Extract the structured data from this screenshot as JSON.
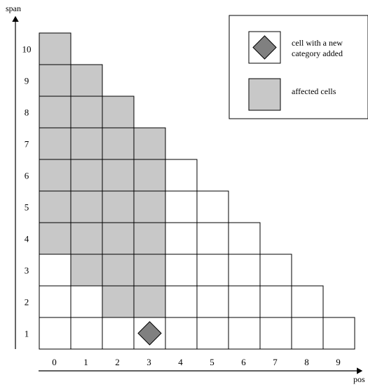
{
  "figure": {
    "axes": {
      "x_title": "pos",
      "y_title": "span",
      "x_ticks": [
        "0",
        "1",
        "2",
        "3",
        "4",
        "5",
        "6",
        "7",
        "8",
        "9"
      ],
      "y_ticks": [
        "1",
        "2",
        "3",
        "4",
        "5",
        "6",
        "7",
        "8",
        "9",
        "10"
      ]
    },
    "grid": {
      "columns": 10,
      "rule": "column pos exists for spans 1 through 10 - pos",
      "cell_fill": "#ffffff",
      "affected_fill": "#c8c8c8",
      "marker_fill": "#808080",
      "stroke": "#000000",
      "new_category_cell": {
        "pos": 3,
        "span": 1
      },
      "affected_cells": [
        {
          "pos": 0,
          "span_from": 4,
          "span_to": 10
        },
        {
          "pos": 1,
          "span_from": 3,
          "span_to": 9
        },
        {
          "pos": 2,
          "span_from": 2,
          "span_to": 8
        },
        {
          "pos": 3,
          "span_from": 2,
          "span_to": 7
        }
      ]
    },
    "legend": {
      "items": [
        {
          "key": "new-category",
          "label_lines": [
            "cell with a new",
            "category added"
          ]
        },
        {
          "key": "affected",
          "label_lines": [
            "affected cells"
          ]
        }
      ]
    }
  }
}
